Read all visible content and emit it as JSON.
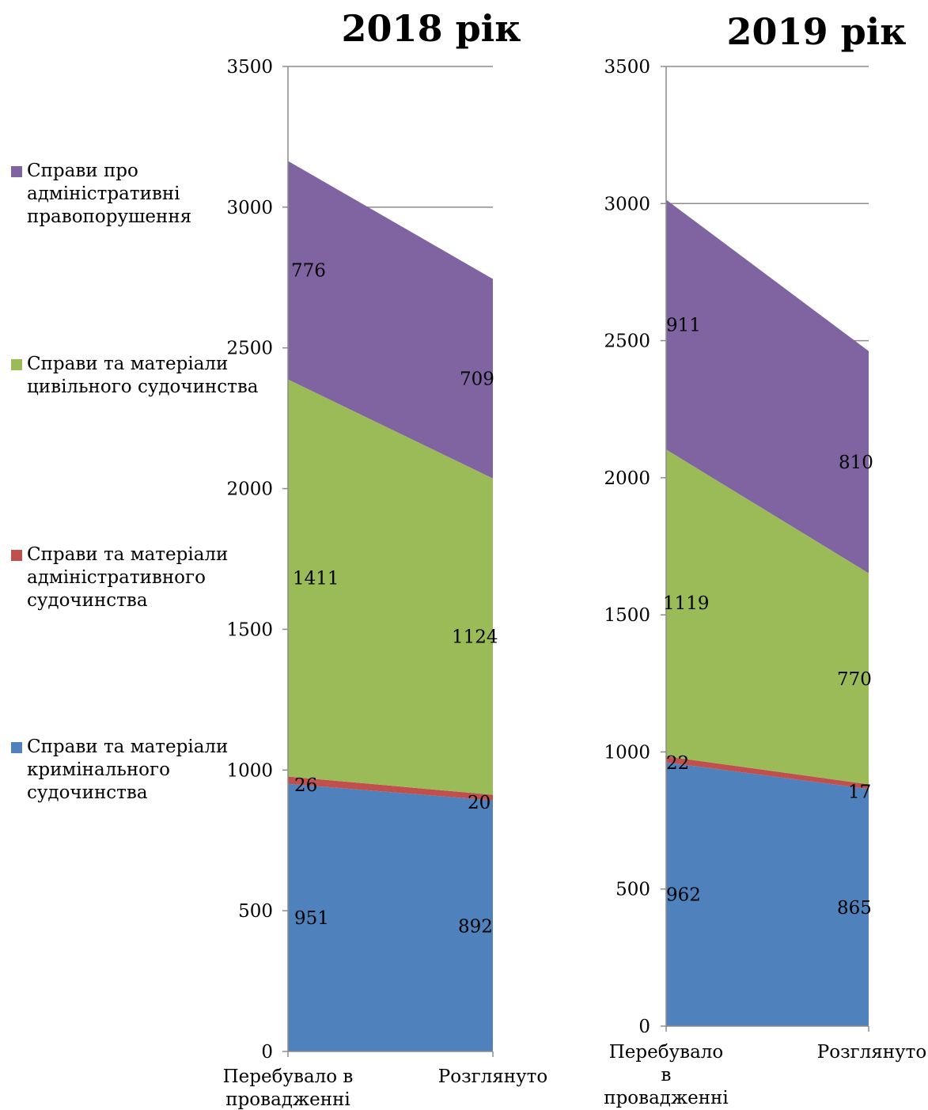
{
  "colors": {
    "criminal": "#4F81BD",
    "administrative": "#C0504D",
    "civil": "#9BBB59",
    "offenses": "#8064A2",
    "grid": "#8C8C8C",
    "axis": "#8C8C8C"
  },
  "legend": [
    {
      "key": "offenses",
      "label": "Справи про\nадміністративні\nправопорушення"
    },
    {
      "key": "civil",
      "label": "Справи та матеріали\nцивільного судочинства"
    },
    {
      "key": "administrative",
      "label": "Справи та матеріали\nадміністративного\nсудочинства"
    },
    {
      "key": "criminal",
      "label": "Справи та матеріали\nкримінального\nсудочинства"
    }
  ],
  "chart_data": [
    {
      "type": "area",
      "stacked": true,
      "title": "2018 рік",
      "categories": [
        "Перебувало в провадженні",
        "Розглянуто"
      ],
      "category_lines": [
        [
          "Перебувало в",
          "провадженні"
        ],
        [
          "Розглянуто"
        ]
      ],
      "ylim": [
        0,
        3500
      ],
      "yticks": [
        0,
        500,
        1000,
        1500,
        2000,
        2500,
        3000,
        3500
      ],
      "grid": true,
      "series": [
        {
          "key": "criminal",
          "name": "Справи та матеріали кримінального судочинства",
          "values": [
            951,
            892
          ],
          "labels": [
            "951",
            "892"
          ]
        },
        {
          "key": "administrative",
          "name": "Справи та матеріали адміністративного судочинства",
          "values": [
            26,
            20
          ],
          "labels": [
            "26",
            "20"
          ]
        },
        {
          "key": "civil",
          "name": "Справи та матеріали цивільного судочинства",
          "values": [
            1411,
            1124
          ],
          "labels": [
            "1411",
            "1124"
          ]
        },
        {
          "key": "offenses",
          "name": "Справи про адміністративні правопорушення",
          "values": [
            776,
            709
          ],
          "labels": [
            "776",
            "709"
          ]
        }
      ]
    },
    {
      "type": "area",
      "stacked": true,
      "title": "2019 рік",
      "categories": [
        "Перебувало в провадженні",
        "Розглянуто"
      ],
      "category_lines": [
        [
          "Перебувало",
          "в",
          "провадженні"
        ],
        [
          "Розглянуто"
        ]
      ],
      "ylim": [
        0,
        3500
      ],
      "yticks": [
        0,
        500,
        1000,
        1500,
        2000,
        2500,
        3000,
        3500
      ],
      "grid": true,
      "series": [
        {
          "key": "criminal",
          "name": "Справи та матеріали кримінального судочинства",
          "values": [
            962,
            865
          ],
          "labels": [
            "962",
            "865"
          ]
        },
        {
          "key": "administrative",
          "name": "Справи та матеріали адміністративного судочинства",
          "values": [
            22,
            17
          ],
          "labels": [
            "22",
            "17"
          ]
        },
        {
          "key": "civil",
          "name": "Справи та матеріали цивільного судочинства",
          "values": [
            1119,
            770
          ],
          "labels": [
            "1119",
            "770"
          ]
        },
        {
          "key": "offenses",
          "name": "Справи про адміністративні правопорушення",
          "values": [
            911,
            810
          ],
          "labels": [
            "911",
            "810"
          ]
        }
      ]
    }
  ]
}
